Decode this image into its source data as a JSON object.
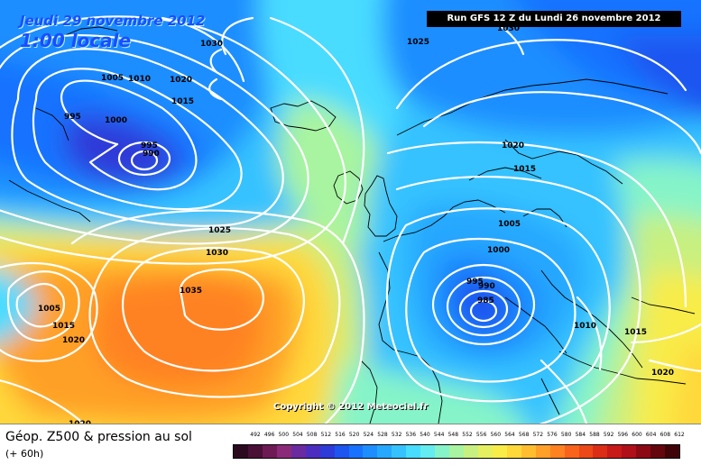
{
  "header": {
    "date_line": "Jeudi 29 novembre 2012",
    "time_line": "1:00 locale",
    "run_label": "Run GFS 12 Z du Lundi 26 novembre 2012"
  },
  "footer": {
    "title": "Géop. Z500 & pression au sol",
    "subtitle": "(+ 60h)",
    "copyright": "Copyright © 2012 Meteociel.fr"
  },
  "scale": {
    "labels": [
      "492",
      "496",
      "500",
      "504",
      "508",
      "512",
      "516",
      "520",
      "524",
      "528",
      "532",
      "536",
      "540",
      "544",
      "548",
      "552",
      "556",
      "560",
      "564",
      "568",
      "572",
      "576",
      "580",
      "584",
      "588",
      "592",
      "596",
      "600",
      "604",
      "608",
      "612"
    ],
    "colors": [
      "#2b0a1f",
      "#4a1036",
      "#6e1a55",
      "#8c2a7a",
      "#6a2aa0",
      "#4b2ec0",
      "#2d3bd8",
      "#1c55f0",
      "#1872ff",
      "#1e8eff",
      "#27a8ff",
      "#36c2ff",
      "#48dcff",
      "#64ecf0",
      "#86f4c8",
      "#a8f4a0",
      "#c8f080",
      "#e4f060",
      "#f8ec48",
      "#ffd83a",
      "#ffbe30",
      "#ffa028",
      "#ff8220",
      "#f8641c",
      "#ec4818",
      "#dc2e16",
      "#c81a18",
      "#b0101a",
      "#8c0a14",
      "#64060e",
      "#400408"
    ]
  },
  "map": {
    "isobar_labels": [
      "1030",
      "1025",
      "1030",
      "1005",
      "1010",
      "1020",
      "1015",
      "995",
      "1000",
      "995",
      "990",
      "1020",
      "1015",
      "1005",
      "1000",
      "995",
      "990",
      "985",
      "1025",
      "1030",
      "1035",
      "1005",
      "1015",
      "1020",
      "1010",
      "1015",
      "1020",
      "1020"
    ]
  }
}
